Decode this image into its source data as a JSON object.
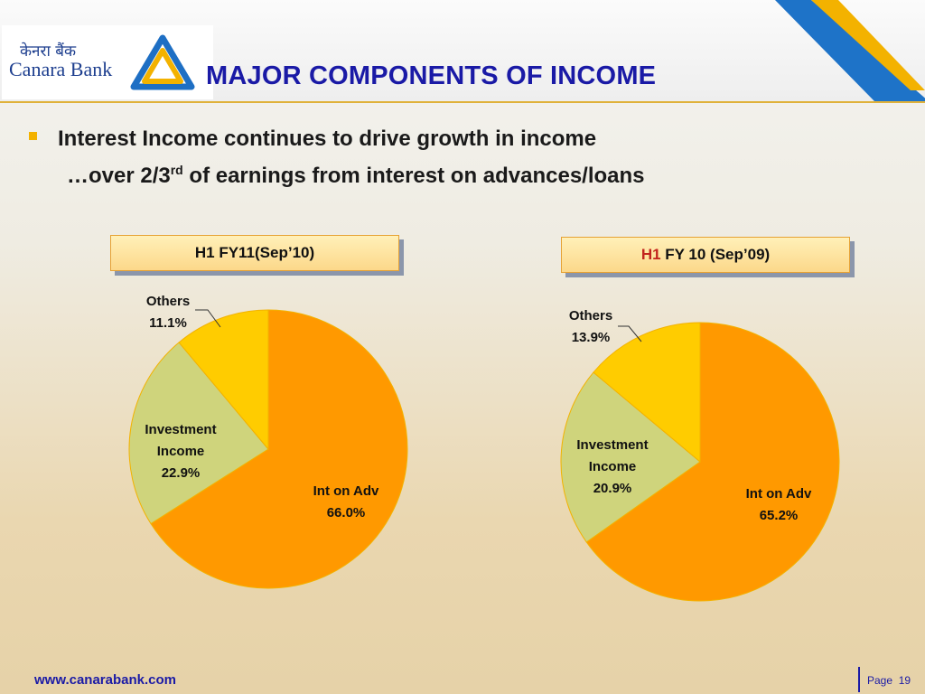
{
  "logo": {
    "hindi": "केनरा बैंक",
    "english": "Canara Bank"
  },
  "title": "MAJOR COMPONENTS OF INCOME",
  "bullets": {
    "line1": "Interest Income continues to drive growth in income",
    "line2_pre": "…over 2/3",
    "line2_sup": "rd",
    "line2_post": " of earnings from interest on advances/loans"
  },
  "colors": {
    "int_on_adv": "#ff9900",
    "investment_income": "#cfd47c",
    "others": "#ffcc00",
    "title_blue": "#1a1aa6"
  },
  "chart_data": [
    {
      "type": "pie",
      "title": "H1 FY11(Sep’10)",
      "slices": [
        {
          "label": [
            "Int on Adv",
            "66.0%"
          ],
          "value": 66.0,
          "color": "#ff9900"
        },
        {
          "label": [
            "Investment",
            "Income",
            "22.9%"
          ],
          "value": 22.9,
          "color": "#cfd47c"
        },
        {
          "label": [
            "Others",
            "11.1%"
          ],
          "value": 11.1,
          "color": "#ffcc00"
        }
      ]
    },
    {
      "type": "pie",
      "title": "FY 10 (Sep’09)",
      "title_prefix": "H1",
      "slices": [
        {
          "label": [
            "Int on Adv",
            "65.2%"
          ],
          "value": 65.2,
          "color": "#ff9900"
        },
        {
          "label": [
            "Investment",
            "Income",
            "20.9%"
          ],
          "value": 20.9,
          "color": "#cfd47c"
        },
        {
          "label": [
            "Others",
            "13.9%"
          ],
          "value": 13.9,
          "color": "#ffcc00"
        }
      ]
    }
  ],
  "footer": {
    "url": "www.canarabank.com",
    "page_label": "Page",
    "page_number": "19"
  }
}
